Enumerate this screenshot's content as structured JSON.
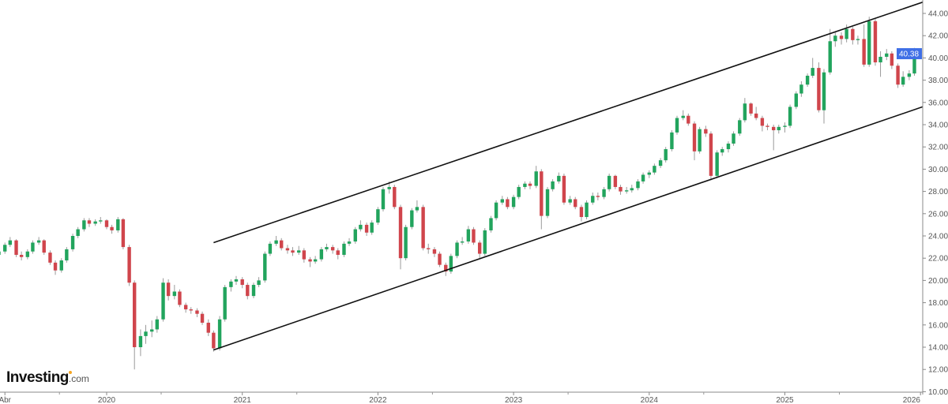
{
  "brand": {
    "logo_text": "Investing",
    "logo_suffix": ".com",
    "logo_accent": "#f5a623"
  },
  "colors": {
    "up": "#22a45d",
    "down": "#d0454c",
    "trendline": "#111111",
    "price_label_bg": "#3f6fe6",
    "axis": "#888888"
  },
  "chart_data": {
    "type": "candlestick",
    "title": "",
    "xlabel": "",
    "ylabel": "",
    "ylim": [
      10,
      45
    ],
    "y_ticks": [
      "10.00",
      "12.00",
      "14.00",
      "16.00",
      "18.00",
      "20.00",
      "22.00",
      "24.00",
      "26.00",
      "28.00",
      "30.00",
      "32.00",
      "34.00",
      "36.00",
      "38.00",
      "40.00",
      "42.00",
      "44.00"
    ],
    "x_ticks": [
      {
        "label": "Abr",
        "date": "2019-04-01"
      },
      {
        "label": "2020",
        "date": "2020-01-01"
      },
      {
        "label": "2021",
        "date": "2021-01-01"
      },
      {
        "label": "2022",
        "date": "2022-01-01"
      },
      {
        "label": "2023",
        "date": "2023-01-01"
      },
      {
        "label": "2024",
        "date": "2024-01-01"
      },
      {
        "label": "2025",
        "date": "2025-01-01"
      },
      {
        "label": "2026",
        "date": "2026-01-01"
      }
    ],
    "grid": false,
    "last_price": "40.38",
    "trendlines": [
      {
        "name": "upper-channel",
        "start": [
          "2020-10-15",
          23.4
        ],
        "end": [
          "2026-01-15",
          45.1
        ]
      },
      {
        "name": "lower-channel",
        "start": [
          "2020-10-15",
          13.75
        ],
        "end": [
          "2026-01-15",
          35.7
        ]
      }
    ],
    "candles_format": [
      "date",
      "open",
      "high",
      "low",
      "close"
    ],
    "candles": [
      [
        "2019-03-15",
        22.3,
        22.9,
        22.0,
        22.6
      ],
      [
        "2019-04-01",
        22.6,
        23.4,
        22.4,
        23.2
      ],
      [
        "2019-04-15",
        23.2,
        23.9,
        23.0,
        23.6
      ],
      [
        "2019-05-01",
        23.6,
        23.7,
        22.1,
        22.3
      ],
      [
        "2019-05-15",
        22.3,
        22.6,
        21.8,
        22.1
      ],
      [
        "2019-06-01",
        22.1,
        22.8,
        21.9,
        22.6
      ],
      [
        "2019-06-15",
        22.6,
        23.6,
        22.4,
        23.4
      ],
      [
        "2019-07-01",
        23.4,
        23.9,
        23.2,
        23.6
      ],
      [
        "2019-07-15",
        23.6,
        23.7,
        22.3,
        22.5
      ],
      [
        "2019-08-01",
        22.5,
        22.7,
        21.4,
        21.6
      ],
      [
        "2019-08-15",
        21.6,
        21.8,
        20.5,
        20.9
      ],
      [
        "2019-09-01",
        20.9,
        22.0,
        20.7,
        21.8
      ],
      [
        "2019-09-15",
        21.8,
        23.0,
        21.6,
        22.8
      ],
      [
        "2019-10-01",
        22.8,
        24.2,
        22.6,
        24.0
      ],
      [
        "2019-10-15",
        24.0,
        24.8,
        23.8,
        24.6
      ],
      [
        "2019-11-01",
        24.6,
        25.6,
        24.4,
        25.4
      ],
      [
        "2019-11-15",
        25.4,
        25.6,
        24.8,
        25.1
      ],
      [
        "2019-12-01",
        25.1,
        25.5,
        24.9,
        25.3
      ],
      [
        "2019-12-15",
        25.3,
        25.7,
        25.1,
        25.4
      ],
      [
        "2020-01-01",
        25.4,
        25.5,
        24.6,
        24.8
      ],
      [
        "2020-01-15",
        24.8,
        25.0,
        24.2,
        24.5
      ],
      [
        "2020-02-01",
        24.5,
        25.7,
        24.3,
        25.5
      ],
      [
        "2020-02-15",
        25.5,
        25.6,
        22.8,
        23.0
      ],
      [
        "2020-03-01",
        23.0,
        23.2,
        19.5,
        19.8
      ],
      [
        "2020-03-15",
        19.8,
        20.0,
        12.0,
        14.0
      ],
      [
        "2020-04-01",
        14.0,
        15.6,
        13.2,
        15.0
      ],
      [
        "2020-04-15",
        15.0,
        16.0,
        14.3,
        15.4
      ],
      [
        "2020-05-01",
        15.4,
        16.4,
        14.9,
        15.6
      ],
      [
        "2020-05-15",
        15.6,
        16.8,
        15.3,
        16.5
      ],
      [
        "2020-06-01",
        16.5,
        20.2,
        16.3,
        19.8
      ],
      [
        "2020-06-15",
        19.8,
        20.1,
        18.2,
        18.6
      ],
      [
        "2020-07-01",
        18.6,
        19.6,
        18.3,
        19.0
      ],
      [
        "2020-07-15",
        19.0,
        19.2,
        17.6,
        17.8
      ],
      [
        "2020-08-01",
        17.8,
        18.0,
        17.1,
        17.4
      ],
      [
        "2020-08-15",
        17.4,
        17.6,
        17.0,
        17.3
      ],
      [
        "2020-09-01",
        17.3,
        17.5,
        16.7,
        17.0
      ],
      [
        "2020-09-15",
        17.0,
        17.2,
        16.0,
        16.2
      ],
      [
        "2020-10-01",
        16.2,
        16.5,
        15.0,
        15.3
      ],
      [
        "2020-10-15",
        15.3,
        15.5,
        13.6,
        13.9
      ],
      [
        "2020-11-01",
        13.9,
        16.8,
        13.7,
        16.5
      ],
      [
        "2020-11-15",
        16.5,
        19.6,
        16.3,
        19.4
      ],
      [
        "2020-12-01",
        19.4,
        20.1,
        19.0,
        19.9
      ],
      [
        "2020-12-15",
        19.9,
        20.4,
        19.6,
        20.1
      ],
      [
        "2021-01-01",
        20.1,
        20.3,
        19.3,
        19.6
      ],
      [
        "2021-01-15",
        19.6,
        19.8,
        18.3,
        18.6
      ],
      [
        "2021-02-01",
        18.6,
        19.8,
        18.4,
        19.6
      ],
      [
        "2021-02-15",
        19.6,
        20.3,
        19.4,
        20.0
      ],
      [
        "2021-03-01",
        20.0,
        22.6,
        19.8,
        22.4
      ],
      [
        "2021-03-15",
        22.4,
        23.5,
        22.2,
        23.3
      ],
      [
        "2021-04-01",
        23.3,
        24.0,
        23.1,
        23.6
      ],
      [
        "2021-04-15",
        23.6,
        23.8,
        22.7,
        22.9
      ],
      [
        "2021-05-01",
        22.9,
        23.2,
        22.4,
        22.7
      ],
      [
        "2021-05-15",
        22.7,
        23.0,
        22.2,
        22.5
      ],
      [
        "2021-06-01",
        22.5,
        23.1,
        22.3,
        22.7
      ],
      [
        "2021-06-15",
        22.7,
        22.9,
        21.6,
        21.9
      ],
      [
        "2021-07-01",
        21.9,
        22.1,
        21.2,
        21.7
      ],
      [
        "2021-07-15",
        21.7,
        22.2,
        21.5,
        21.9
      ],
      [
        "2021-08-01",
        21.9,
        23.0,
        21.7,
        22.8
      ],
      [
        "2021-08-15",
        22.8,
        23.3,
        22.6,
        23.0
      ],
      [
        "2021-09-01",
        23.0,
        23.2,
        22.4,
        22.7
      ],
      [
        "2021-09-15",
        22.7,
        22.9,
        21.9,
        22.3
      ],
      [
        "2021-10-01",
        22.3,
        23.5,
        22.1,
        23.3
      ],
      [
        "2021-10-15",
        23.3,
        23.8,
        23.1,
        23.5
      ],
      [
        "2021-11-01",
        23.5,
        24.8,
        23.3,
        24.6
      ],
      [
        "2021-11-15",
        24.6,
        25.4,
        24.4,
        25.0
      ],
      [
        "2021-12-01",
        25.0,
        25.2,
        24.0,
        24.3
      ],
      [
        "2021-12-15",
        24.3,
        25.4,
        24.1,
        25.2
      ],
      [
        "2022-01-01",
        25.2,
        26.6,
        25.0,
        26.4
      ],
      [
        "2022-01-15",
        26.4,
        28.4,
        26.2,
        28.2
      ],
      [
        "2022-02-01",
        28.2,
        28.9,
        27.8,
        28.4
      ],
      [
        "2022-02-15",
        28.4,
        28.6,
        26.4,
        26.6
      ],
      [
        "2022-03-01",
        26.6,
        26.8,
        21.0,
        22.0
      ],
      [
        "2022-03-15",
        22.0,
        25.0,
        21.8,
        24.8
      ],
      [
        "2022-04-01",
        24.8,
        26.5,
        24.6,
        26.3
      ],
      [
        "2022-04-15",
        26.3,
        27.2,
        26.1,
        26.6
      ],
      [
        "2022-05-01",
        26.6,
        26.8,
        22.7,
        22.9
      ],
      [
        "2022-05-15",
        22.9,
        23.3,
        22.4,
        22.8
      ],
      [
        "2022-06-01",
        22.8,
        23.0,
        22.1,
        22.4
      ],
      [
        "2022-06-15",
        22.4,
        22.6,
        21.2,
        21.4
      ],
      [
        "2022-07-01",
        21.4,
        21.6,
        20.4,
        20.8
      ],
      [
        "2022-07-15",
        20.8,
        22.4,
        20.6,
        22.2
      ],
      [
        "2022-08-01",
        22.2,
        23.6,
        22.0,
        23.4
      ],
      [
        "2022-08-15",
        23.4,
        23.9,
        23.2,
        23.5
      ],
      [
        "2022-09-01",
        23.5,
        24.9,
        23.3,
        24.6
      ],
      [
        "2022-09-15",
        24.6,
        24.8,
        23.2,
        23.4
      ],
      [
        "2022-10-01",
        23.4,
        23.6,
        22.0,
        22.4
      ],
      [
        "2022-10-15",
        22.4,
        24.7,
        22.2,
        24.5
      ],
      [
        "2022-11-01",
        24.5,
        25.8,
        24.3,
        25.6
      ],
      [
        "2022-11-15",
        25.6,
        27.2,
        25.4,
        27.0
      ],
      [
        "2022-12-01",
        27.0,
        27.6,
        26.8,
        27.3
      ],
      [
        "2022-12-15",
        27.3,
        27.5,
        26.4,
        26.6
      ],
      [
        "2023-01-01",
        26.6,
        27.7,
        26.4,
        27.5
      ],
      [
        "2023-01-15",
        27.5,
        28.6,
        27.3,
        28.4
      ],
      [
        "2023-02-01",
        28.4,
        28.9,
        28.2,
        28.7
      ],
      [
        "2023-02-15",
        28.7,
        28.9,
        28.2,
        28.5
      ],
      [
        "2023-03-01",
        28.5,
        30.3,
        28.3,
        29.8
      ],
      [
        "2023-03-15",
        29.8,
        30.0,
        24.6,
        25.8
      ],
      [
        "2023-04-01",
        25.8,
        28.4,
        25.6,
        28.2
      ],
      [
        "2023-04-15",
        28.2,
        29.1,
        28.0,
        28.9
      ],
      [
        "2023-05-01",
        28.9,
        29.7,
        28.7,
        29.4
      ],
      [
        "2023-05-15",
        29.4,
        29.6,
        26.8,
        27.0
      ],
      [
        "2023-06-01",
        27.0,
        27.6,
        26.8,
        27.3
      ],
      [
        "2023-06-15",
        27.3,
        27.5,
        26.4,
        26.6
      ],
      [
        "2023-07-01",
        26.6,
        26.8,
        25.3,
        25.7
      ],
      [
        "2023-07-15",
        25.7,
        27.2,
        25.5,
        27.0
      ],
      [
        "2023-08-01",
        27.0,
        27.9,
        26.8,
        27.6
      ],
      [
        "2023-08-15",
        27.6,
        27.9,
        27.2,
        27.5
      ],
      [
        "2023-09-01",
        27.5,
        28.4,
        27.3,
        28.2
      ],
      [
        "2023-09-15",
        28.2,
        29.6,
        28.0,
        29.4
      ],
      [
        "2023-10-01",
        29.4,
        29.5,
        28.2,
        28.4
      ],
      [
        "2023-10-15",
        28.4,
        28.6,
        27.7,
        28.0
      ],
      [
        "2023-11-01",
        28.0,
        28.4,
        27.8,
        28.1
      ],
      [
        "2023-11-15",
        28.1,
        28.6,
        27.9,
        28.3
      ],
      [
        "2023-12-01",
        28.3,
        29.1,
        28.1,
        28.9
      ],
      [
        "2023-12-15",
        28.9,
        29.7,
        28.7,
        29.5
      ],
      [
        "2024-01-01",
        29.5,
        29.9,
        29.2,
        29.7
      ],
      [
        "2024-01-15",
        29.7,
        30.5,
        29.5,
        30.3
      ],
      [
        "2024-02-01",
        30.3,
        31.0,
        30.1,
        30.8
      ],
      [
        "2024-02-15",
        30.8,
        32.0,
        30.6,
        31.8
      ],
      [
        "2024-03-01",
        31.8,
        33.5,
        31.6,
        33.3
      ],
      [
        "2024-03-15",
        33.3,
        34.8,
        33.1,
        34.6
      ],
      [
        "2024-04-01",
        34.6,
        35.3,
        34.4,
        34.8
      ],
      [
        "2024-04-15",
        34.8,
        35.0,
        33.9,
        34.1
      ],
      [
        "2024-05-01",
        34.1,
        34.3,
        30.8,
        31.6
      ],
      [
        "2024-05-15",
        31.6,
        33.8,
        31.4,
        33.6
      ],
      [
        "2024-06-01",
        33.6,
        33.9,
        32.9,
        33.2
      ],
      [
        "2024-06-15",
        33.2,
        33.4,
        29.0,
        29.4
      ],
      [
        "2024-07-01",
        29.4,
        31.7,
        29.2,
        31.5
      ],
      [
        "2024-07-15",
        31.5,
        32.0,
        31.2,
        31.8
      ],
      [
        "2024-08-01",
        31.8,
        32.5,
        31.5,
        32.3
      ],
      [
        "2024-08-15",
        32.3,
        33.4,
        32.1,
        33.2
      ],
      [
        "2024-09-01",
        33.2,
        34.6,
        33.0,
        34.4
      ],
      [
        "2024-09-15",
        34.4,
        36.4,
        34.2,
        35.9
      ],
      [
        "2024-10-01",
        35.9,
        36.0,
        34.8,
        35.0
      ],
      [
        "2024-10-15",
        35.0,
        35.6,
        34.4,
        34.6
      ],
      [
        "2024-11-01",
        34.6,
        34.8,
        33.4,
        33.9
      ],
      [
        "2024-11-15",
        33.9,
        34.1,
        33.5,
        33.8
      ],
      [
        "2024-12-01",
        33.8,
        34.0,
        31.7,
        33.5
      ],
      [
        "2024-12-15",
        33.5,
        34.0,
        33.2,
        33.8
      ],
      [
        "2025-01-01",
        33.8,
        34.2,
        33.3,
        33.9
      ],
      [
        "2025-01-15",
        33.9,
        35.8,
        33.7,
        35.6
      ],
      [
        "2025-02-01",
        35.6,
        37.0,
        35.4,
        36.8
      ],
      [
        "2025-02-15",
        36.8,
        37.9,
        36.5,
        37.6
      ],
      [
        "2025-03-01",
        37.6,
        38.6,
        37.4,
        38.4
      ],
      [
        "2025-03-15",
        38.4,
        40.0,
        38.2,
        39.1
      ],
      [
        "2025-04-01",
        39.1,
        39.6,
        35.1,
        35.3
      ],
      [
        "2025-04-15",
        35.3,
        39.0,
        34.1,
        38.7
      ],
      [
        "2025-05-01",
        38.7,
        42.6,
        38.5,
        41.5
      ],
      [
        "2025-05-15",
        41.5,
        42.4,
        41.0,
        42.0
      ],
      [
        "2025-06-01",
        42.0,
        42.3,
        41.2,
        41.7
      ],
      [
        "2025-06-15",
        41.7,
        43.0,
        41.4,
        42.6
      ],
      [
        "2025-07-01",
        42.6,
        42.8,
        41.2,
        41.6
      ],
      [
        "2025-07-15",
        41.6,
        42.0,
        41.2,
        41.7
      ],
      [
        "2025-08-01",
        41.7,
        43.0,
        39.2,
        39.4
      ],
      [
        "2025-08-15",
        39.4,
        43.7,
        39.2,
        43.3
      ],
      [
        "2025-09-01",
        43.3,
        43.5,
        39.3,
        39.6
      ],
      [
        "2025-09-15",
        39.6,
        40.6,
        38.3,
        40.1
      ],
      [
        "2025-10-01",
        40.1,
        40.8,
        39.8,
        40.4
      ],
      [
        "2025-10-15",
        40.4,
        40.6,
        39.0,
        39.3
      ],
      [
        "2025-11-01",
        39.3,
        39.5,
        37.3,
        37.6
      ],
      [
        "2025-11-15",
        37.6,
        38.8,
        37.4,
        38.3
      ],
      [
        "2025-12-01",
        38.3,
        38.9,
        38.0,
        38.6
      ],
      [
        "2025-12-15",
        38.6,
        40.9,
        38.4,
        40.38
      ]
    ]
  }
}
